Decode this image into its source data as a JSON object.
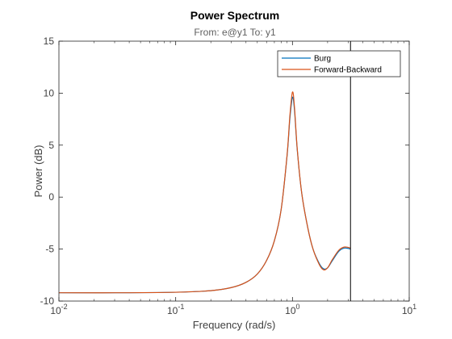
{
  "chart_data": {
    "type": "line",
    "title": "Power Spectrum",
    "subtitle": "From: e@y1  To: y1",
    "xlabel": "Frequency  (rad/s)",
    "ylabel": "Power (dB)",
    "xscale": "log",
    "xlim": [
      0.01,
      10
    ],
    "ylim": [
      -10,
      15
    ],
    "grid": false,
    "legend_position": "top-right",
    "x_ticks": [
      {
        "base": "10",
        "exp": "-2",
        "value": 0.01
      },
      {
        "base": "10",
        "exp": "-1",
        "value": 0.1
      },
      {
        "base": "10",
        "exp": "0",
        "value": 1
      },
      {
        "base": "10",
        "exp": "1",
        "value": 10
      }
    ],
    "y_ticks": [
      {
        "label": "-10",
        "value": -10
      },
      {
        "label": "-5",
        "value": -5
      },
      {
        "label": "0",
        "value": 0
      },
      {
        "label": "5",
        "value": 5
      },
      {
        "label": "10",
        "value": 10
      },
      {
        "label": "15",
        "value": 15
      }
    ],
    "nyquist_line_x": 3.1416,
    "series": [
      {
        "name": "Burg",
        "color": "#0072bd",
        "points": [
          [
            0.01,
            -9.2
          ],
          [
            0.03,
            -9.2
          ],
          [
            0.1,
            -9.15
          ],
          [
            0.2,
            -9.0
          ],
          [
            0.3,
            -8.7
          ],
          [
            0.4,
            -8.2
          ],
          [
            0.5,
            -7.4
          ],
          [
            0.6,
            -6.1
          ],
          [
            0.7,
            -4.2
          ],
          [
            0.8,
            -1.2
          ],
          [
            0.9,
            4.0
          ],
          [
            0.95,
            7.5
          ],
          [
            1.0,
            9.6
          ],
          [
            1.04,
            8.4
          ],
          [
            1.1,
            4.5
          ],
          [
            1.2,
            0.4
          ],
          [
            1.35,
            -2.9
          ],
          [
            1.5,
            -5.0
          ],
          [
            1.7,
            -6.4
          ],
          [
            1.85,
            -6.9
          ],
          [
            2.0,
            -6.8
          ],
          [
            2.2,
            -6.1
          ],
          [
            2.5,
            -5.2
          ],
          [
            2.8,
            -4.9
          ],
          [
            3.1416,
            -5.0
          ]
        ]
      },
      {
        "name": "Forward-Backward",
        "color": "#d95319",
        "points": [
          [
            0.01,
            -9.2
          ],
          [
            0.03,
            -9.2
          ],
          [
            0.1,
            -9.15
          ],
          [
            0.2,
            -9.0
          ],
          [
            0.3,
            -8.7
          ],
          [
            0.4,
            -8.2
          ],
          [
            0.5,
            -7.4
          ],
          [
            0.6,
            -6.1
          ],
          [
            0.7,
            -4.2
          ],
          [
            0.8,
            -1.2
          ],
          [
            0.9,
            4.1
          ],
          [
            0.95,
            7.8
          ],
          [
            1.0,
            10.1
          ],
          [
            1.04,
            8.7
          ],
          [
            1.1,
            4.6
          ],
          [
            1.2,
            0.4
          ],
          [
            1.35,
            -2.9
          ],
          [
            1.5,
            -5.0
          ],
          [
            1.7,
            -6.5
          ],
          [
            1.85,
            -7.0
          ],
          [
            2.0,
            -6.8
          ],
          [
            2.2,
            -6.0
          ],
          [
            2.5,
            -5.1
          ],
          [
            2.8,
            -4.8
          ],
          [
            3.1416,
            -4.9
          ]
        ]
      }
    ]
  }
}
